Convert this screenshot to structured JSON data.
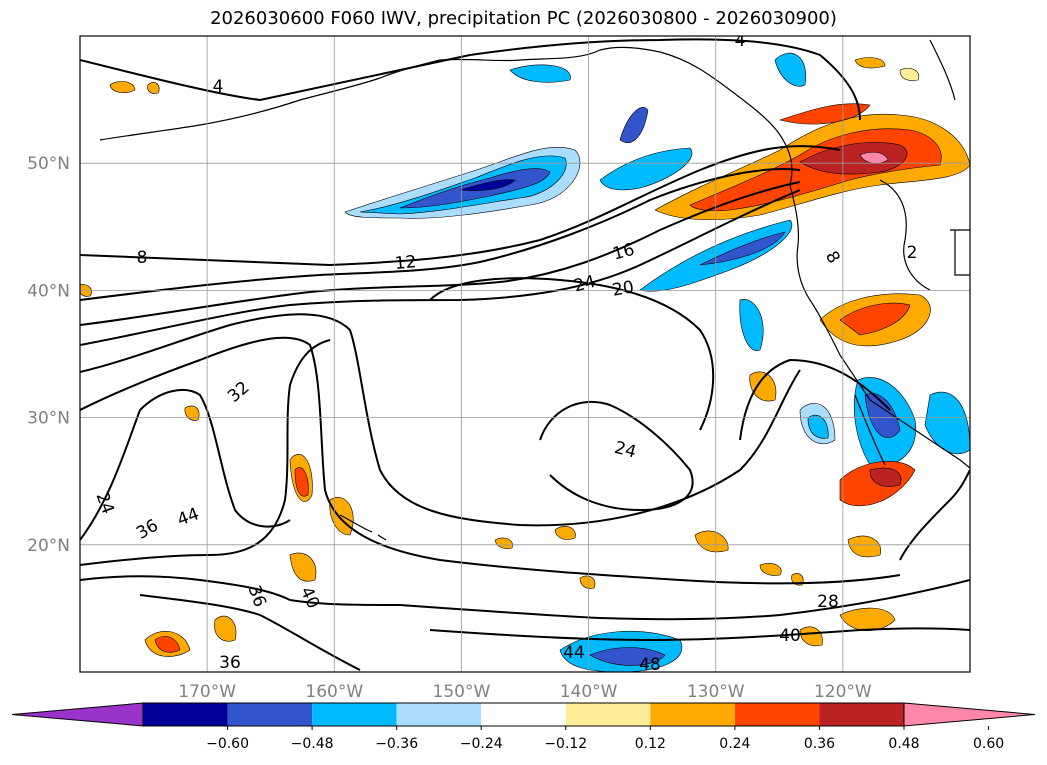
{
  "title": "2026030600 F060 IWV, precipitation PC (2026030800 - 2026030900)",
  "map": {
    "lon_range": [
      -180,
      -110
    ],
    "lat_range": [
      10,
      60
    ],
    "lat_ticks": [
      {
        "value": 50,
        "label": "50°N"
      },
      {
        "value": 40,
        "label": "40°N"
      },
      {
        "value": 30,
        "label": "30°N"
      },
      {
        "value": 20,
        "label": "20°N"
      }
    ],
    "lon_ticks": [
      {
        "value": -170,
        "label": "170°W"
      },
      {
        "value": -160,
        "label": "160°W"
      },
      {
        "value": -150,
        "label": "150°W"
      },
      {
        "value": -140,
        "label": "140°W"
      },
      {
        "value": -130,
        "label": "130°W"
      },
      {
        "value": -120,
        "label": "120°W"
      }
    ],
    "grid": true,
    "contour_labels": [
      "4",
      "8",
      "12",
      "16",
      "20",
      "24",
      "24",
      "32",
      "24",
      "36",
      "44",
      "36",
      "40",
      "36",
      "44",
      "48",
      "40",
      "28",
      "8",
      "2",
      "4"
    ]
  },
  "colorbar": {
    "colors": [
      "#9933cc",
      "#000099",
      "#3355cc",
      "#00bbff",
      "#aaddff",
      "#ffffff",
      "#ffee99",
      "#ffaa00",
      "#ff4400",
      "#bb2222",
      "#ff88aa"
    ],
    "tick_labels": [
      "−0.60",
      "−0.48",
      "−0.36",
      "−0.24",
      "−0.12",
      "0.12",
      "0.24",
      "0.36",
      "0.48",
      "0.60"
    ]
  }
}
